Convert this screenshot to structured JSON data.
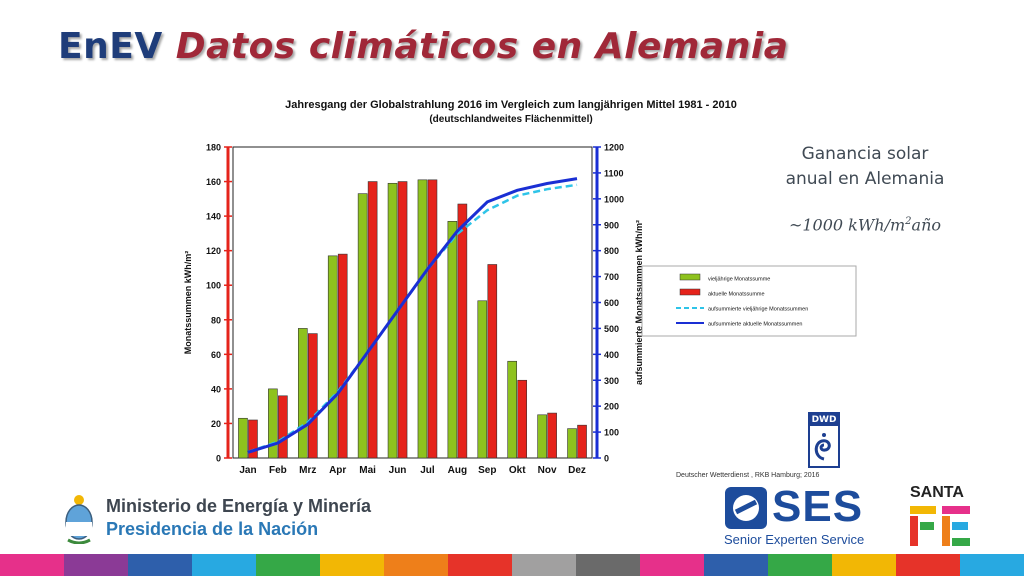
{
  "slide": {
    "title_prefix": "EnEV",
    "title_main": "Datos climáticos en Alemania",
    "side_caption_line1": "Ganancia solar",
    "side_caption_line2": "anual en Alemania",
    "side_formula_prefix": "~1000 kWh/m",
    "side_formula_exp": "2",
    "side_formula_suffix": "año",
    "credit": "Deutscher Wetterdienst , RKB Hamburg; 2016",
    "dwd_logo_text": "DWD",
    "ministry_line1": "Ministerio de Energía y Minería",
    "ministry_line2": "Presidencia de la Nación",
    "ses_logo_text": "SES",
    "ses_subtitle": "Senior Experten Service",
    "santa_fe_text": "SANTA",
    "santa_fe_text2": "FE",
    "colors": {
      "title_blue": "#1f3d7a",
      "title_red": "#a02838",
      "bar_green": "#8ec21e",
      "bar_red": "#e5231b",
      "line_dashed": "#2ec4e8",
      "line_solid": "#1a2fd4",
      "stripe": [
        "#e6308a",
        "#8b3a96",
        "#2e5fab",
        "#28a9e1",
        "#35a847",
        "#f2b705",
        "#ee7f1a",
        "#e63329",
        "#a1a0a0",
        "#6a6a6a",
        "#e6308a",
        "#2e5fab",
        "#35a847",
        "#f2b705",
        "#e63329",
        "#28a9e1"
      ]
    }
  },
  "chart_data": {
    "type": "bar",
    "title": "Jahresgang der Globalstrahlung 2016 im Vergleich zum langjährigen Mittel 1981 - 2010",
    "subtitle": "(deutschlandweites Flächenmittel)",
    "categories": [
      "Jan",
      "Feb",
      "Mrz",
      "Apr",
      "Mai",
      "Jun",
      "Jul",
      "Aug",
      "Sep",
      "Okt",
      "Nov",
      "Dez"
    ],
    "ylabel_left": "Monatssummen kWh/m²",
    "ylabel_right": "aufsummierte Monatssummen kWh/m²",
    "ylim_left": [
      0,
      180
    ],
    "yticks_left": [
      0,
      20,
      40,
      60,
      80,
      100,
      120,
      140,
      160,
      180
    ],
    "ylim_right": [
      0,
      1200
    ],
    "yticks_right": [
      0,
      100,
      200,
      300,
      400,
      500,
      600,
      700,
      800,
      900,
      1000,
      1100,
      1200
    ],
    "grid": false,
    "legend_position": "right",
    "series": [
      {
        "name": "vieljährige Monatssumme",
        "type": "bar",
        "axis": "left",
        "values": [
          23,
          40,
          75,
          117,
          153,
          159,
          161,
          137,
          91,
          56,
          25,
          17
        ]
      },
      {
        "name": "aktuelle Monatssumme",
        "type": "bar",
        "axis": "left",
        "values": [
          22,
          36,
          72,
          118,
          160,
          160,
          161,
          147,
          112,
          45,
          26,
          19
        ]
      },
      {
        "name": "aufsummierte vieljährige Monatssummen",
        "type": "line",
        "style": "dashed",
        "axis": "right",
        "values": [
          23,
          63,
          138,
          255,
          408,
          567,
          728,
          865,
          956,
          1012,
          1037,
          1054
        ]
      },
      {
        "name": "aufsummierte aktuelle Monatssummen",
        "type": "line",
        "style": "solid",
        "axis": "right",
        "values": [
          22,
          58,
          130,
          248,
          408,
          568,
          729,
          876,
          988,
          1033,
          1059,
          1078
        ]
      }
    ]
  }
}
